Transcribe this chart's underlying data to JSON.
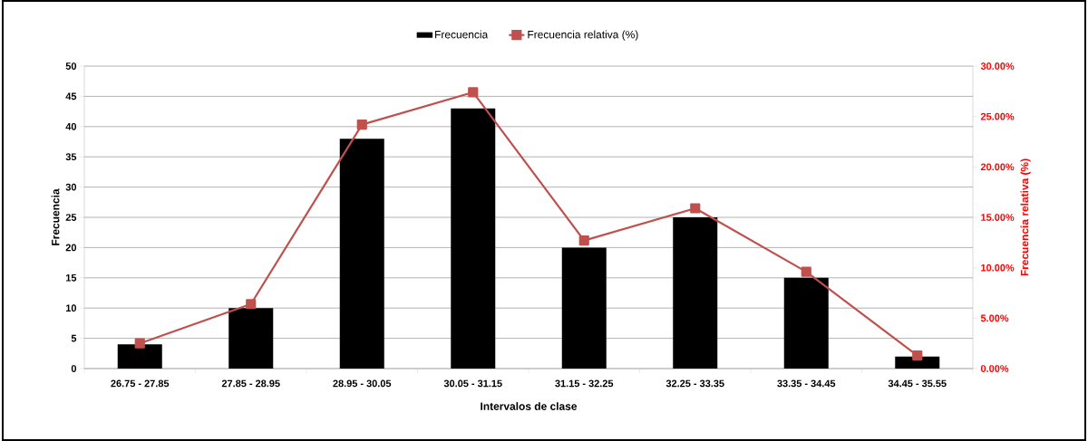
{
  "chart_data": {
    "type": "bar",
    "xlabel": "Intervalos de clase",
    "ylabel": "Frecuencia",
    "y2label": "Frecuencia relativa (%)",
    "categories": [
      "26.75 - 27.85",
      "27.85 - 28.95",
      "28.95 - 30.05",
      "30.05 - 31.15",
      "31.15 - 32.25",
      "32.25 - 33.35",
      "33.35 - 34.45",
      "34.45 - 35.55"
    ],
    "series": [
      {
        "name": "Frecuencia",
        "color": "#000000",
        "values": [
          4,
          10,
          38,
          43,
          20,
          25,
          15,
          2
        ]
      },
      {
        "name": "Frecuencia relativa (%)",
        "type": "line",
        "axis": "y2",
        "color": "#c0504d",
        "values": [
          2.5,
          6.4,
          24.2,
          27.4,
          12.7,
          15.9,
          9.6,
          1.3
        ]
      }
    ],
    "ylim": [
      0,
      50
    ],
    "yticks": [
      0,
      5,
      10,
      15,
      20,
      25,
      30,
      35,
      40,
      45,
      50
    ],
    "y2lim": [
      0,
      30
    ],
    "y2ticks": [
      {
        "value": 0,
        "label": "0.00%"
      },
      {
        "value": 5,
        "label": "5.00%"
      },
      {
        "value": 10,
        "label": "10.00%"
      },
      {
        "value": 15,
        "label": "15.00%"
      },
      {
        "value": 20,
        "label": "20.00%"
      },
      {
        "value": 25,
        "label": "25.00%"
      },
      {
        "value": 30,
        "label": "30.00%"
      }
    ],
    "grid": "y",
    "legend": "top",
    "marker": "square"
  }
}
